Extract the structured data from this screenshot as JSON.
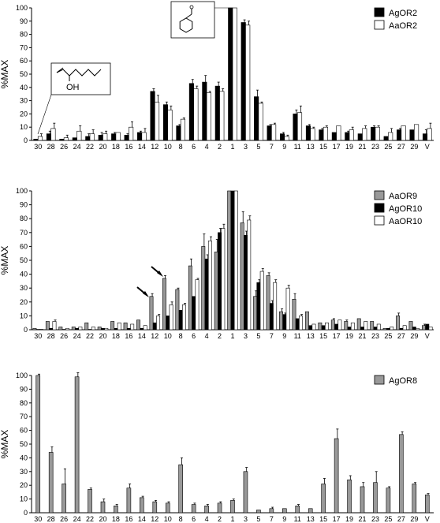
{
  "chart_data": [
    {
      "type": "bar",
      "categories": [
        "30",
        "28",
        "26",
        "24",
        "22",
        "20",
        "18",
        "16",
        "14",
        "12",
        "10",
        "8",
        "6",
        "4",
        "2",
        "1",
        "3",
        "5",
        "7",
        "9",
        "11",
        "13",
        "15",
        "17",
        "19",
        "21",
        "23",
        "25",
        "27",
        "29",
        "V"
      ],
      "ylabel": "%MAX",
      "ylim": [
        0,
        100
      ],
      "yticks": [
        0,
        10,
        20,
        30,
        40,
        50,
        60,
        70,
        80,
        90,
        100
      ],
      "legend_position": "top-right",
      "series": [
        {
          "name": "AgOR2",
          "color": "#000000",
          "stroke": "#000000",
          "values": [
            1,
            5,
            1,
            2,
            3,
            4,
            5,
            4,
            6,
            37,
            27,
            11,
            43,
            44,
            41,
            100,
            89,
            33,
            11,
            5,
            20,
            11,
            8,
            6,
            6,
            5,
            10,
            3,
            8,
            8,
            5
          ],
          "errors": [
            0,
            2,
            0,
            0,
            2,
            2,
            1,
            1,
            1,
            2,
            2,
            1,
            3,
            5,
            3,
            0,
            2,
            5,
            1,
            1,
            3,
            1,
            1,
            0,
            1,
            0,
            1,
            0,
            1,
            0,
            3
          ]
        },
        {
          "name": "AaOR2",
          "color": "#ffffff",
          "stroke": "#000000",
          "values": [
            3,
            9,
            2,
            7,
            5,
            5,
            6,
            10,
            6,
            29,
            23,
            16,
            39,
            36,
            37,
            100,
            87,
            28,
            12,
            3,
            21,
            9,
            10,
            11,
            8,
            9,
            10,
            6,
            11,
            12,
            9
          ],
          "errors": [
            2,
            4,
            2,
            4,
            3,
            2,
            0,
            4,
            3,
            5,
            3,
            1,
            2,
            1,
            2,
            0,
            3,
            1,
            1,
            1,
            5,
            1,
            1,
            0,
            2,
            2,
            1,
            3,
            0,
            0,
            4
          ]
        }
      ],
      "annotations": [
        "OH"
      ]
    },
    {
      "type": "bar",
      "categories": [
        "30",
        "28",
        "26",
        "24",
        "22",
        "20",
        "18",
        "16",
        "14",
        "12",
        "10",
        "8",
        "6",
        "4",
        "2",
        "1",
        "3",
        "5",
        "7",
        "9",
        "11",
        "13",
        "15",
        "17",
        "19",
        "21",
        "23",
        "25",
        "27",
        "29",
        "V"
      ],
      "ylabel": "%MAX",
      "ylim": [
        0,
        100
      ],
      "yticks": [
        0,
        10,
        20,
        30,
        40,
        50,
        60,
        70,
        80,
        90,
        100
      ],
      "legend_position": "top-right",
      "series": [
        {
          "name": "AaOR9",
          "color": "#999999",
          "stroke": "#000000",
          "values": [
            1,
            6,
            2,
            2,
            5,
            2,
            6,
            5,
            7,
            24,
            37,
            29,
            46,
            60,
            56,
            100,
            77,
            24,
            39,
            13,
            22,
            13,
            5,
            7,
            6,
            8,
            6,
            1,
            10,
            6,
            3
          ],
          "errors": [
            0,
            0,
            0,
            0,
            0,
            0,
            0,
            0,
            0,
            2,
            2,
            1,
            5,
            9,
            9,
            0,
            8,
            4,
            2,
            2,
            4,
            0,
            0,
            1,
            1,
            0,
            0,
            0,
            2,
            0,
            1
          ]
        },
        {
          "name": "AgOR10",
          "color": "#000000",
          "stroke": "#000000",
          "values": [
            0,
            1,
            0,
            1,
            0,
            1,
            1,
            1,
            1,
            5,
            10,
            14,
            24,
            51,
            70,
            100,
            68,
            34,
            19,
            11,
            8,
            3,
            3,
            4,
            2,
            2,
            2,
            1,
            1,
            2,
            4
          ],
          "errors": [
            0,
            0,
            0,
            0,
            0,
            0,
            0,
            0,
            0,
            0,
            0,
            0,
            0,
            3,
            3,
            0,
            3,
            2,
            2,
            1,
            0,
            0,
            0,
            0,
            0,
            0,
            0,
            0,
            0,
            0,
            0
          ]
        },
        {
          "name": "AaOR10",
          "color": "#ffffff",
          "stroke": "#000000",
          "values": [
            0,
            6,
            1,
            2,
            2,
            1,
            5,
            4,
            3,
            10,
            18,
            18,
            36,
            64,
            73,
            100,
            79,
            42,
            34,
            30,
            10,
            4,
            5,
            7,
            5,
            6,
            4,
            2,
            3,
            1,
            2
          ],
          "errors": [
            0,
            1,
            0,
            0,
            0,
            0,
            0,
            0,
            0,
            1,
            2,
            1,
            1,
            3,
            3,
            0,
            3,
            2,
            2,
            2,
            1,
            0,
            0,
            0,
            0,
            0,
            0,
            0,
            0,
            0,
            0
          ]
        }
      ],
      "annotations": []
    },
    {
      "type": "bar",
      "categories": [
        "30",
        "28",
        "26",
        "24",
        "22",
        "20",
        "18",
        "16",
        "14",
        "12",
        "10",
        "8",
        "6",
        "4",
        "2",
        "1",
        "3",
        "5",
        "7",
        "9",
        "11",
        "13",
        "15",
        "17",
        "19",
        "21",
        "23",
        "25",
        "27",
        "29",
        "V"
      ],
      "ylabel": "%MAX",
      "ylim": [
        0,
        100
      ],
      "yticks": [
        0,
        10,
        20,
        30,
        40,
        50,
        60,
        70,
        80,
        90,
        100
      ],
      "legend_position": "top-right",
      "series": [
        {
          "name": "AgOR8",
          "color": "#999999",
          "stroke": "#000000",
          "values": [
            100,
            44,
            21,
            99,
            17,
            8,
            5,
            18,
            11,
            8,
            7,
            35,
            6,
            5,
            7,
            9,
            30,
            2,
            3,
            3,
            5,
            3,
            21,
            54,
            24,
            19,
            22,
            18,
            57,
            21,
            13
          ],
          "errors": [
            1,
            4,
            11,
            3,
            1,
            2,
            1,
            3,
            1,
            1,
            1,
            5,
            1,
            1,
            1,
            1,
            3,
            0,
            1,
            0,
            1,
            0,
            4,
            7,
            3,
            3,
            8,
            1,
            2,
            1,
            1
          ]
        }
      ],
      "annotations": []
    }
  ]
}
